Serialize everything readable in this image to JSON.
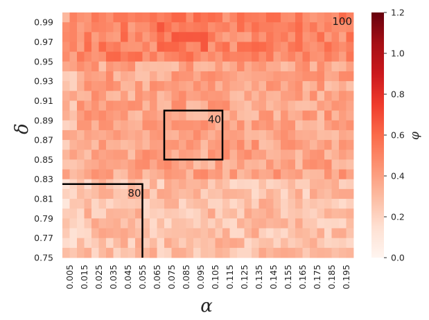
{
  "chart_data": {
    "type": "heatmap",
    "colormap": "Reds",
    "xlabel": "α",
    "ylabel": "δ",
    "colorbar_label": "φ",
    "x_ticks": [
      "0.005",
      "0.015",
      "0.025",
      "0.035",
      "0.045",
      "0.055",
      "0.065",
      "0.075",
      "0.085",
      "0.095",
      "0.105",
      "0.115",
      "0.125",
      "0.135",
      "0.145",
      "0.155",
      "0.165",
      "0.175",
      "0.185",
      "0.195"
    ],
    "y_ticks": [
      "0.99",
      "0.97",
      "0.95",
      "0.93",
      "0.91",
      "0.89",
      "0.87",
      "0.85",
      "0.83",
      "0.81",
      "0.79",
      "0.77",
      "0.75"
    ],
    "grid": {
      "cols": 40,
      "rows": 25,
      "x_range": [
        0.0,
        0.2
      ],
      "y_range": [
        0.75,
        1.0
      ]
    },
    "colorbar": {
      "min": 0.0,
      "max": 1.2,
      "ticks": [
        "0.0",
        "0.2",
        "0.4",
        "0.6",
        "0.8",
        "1.0",
        "1.2"
      ]
    },
    "value_pattern_note_hidden": "",
    "region_summary": [
      {
        "area": "top band (delta ≥ 0.95)",
        "approx_value": 0.5
      },
      {
        "area": "middle band",
        "approx_value": 0.38
      },
      {
        "area": "lower band (delta ≤ 0.83)",
        "approx_value": 0.28
      }
    ],
    "annotations": [
      {
        "label": "100",
        "region": {
          "alpha_min": 0.0,
          "alpha_max": 0.2,
          "delta_min": 0.75,
          "delta_max": 1.0
        },
        "boxed": false
      },
      {
        "label": "40",
        "region": {
          "alpha_min": 0.07,
          "alpha_max": 0.11,
          "delta_min": 0.85,
          "delta_max": 0.9
        },
        "boxed": true
      },
      {
        "label": "80",
        "region": {
          "alpha_min": 0.0,
          "alpha_max": 0.055,
          "delta_min": 0.75,
          "delta_max": 0.825
        },
        "boxed": true
      }
    ]
  }
}
